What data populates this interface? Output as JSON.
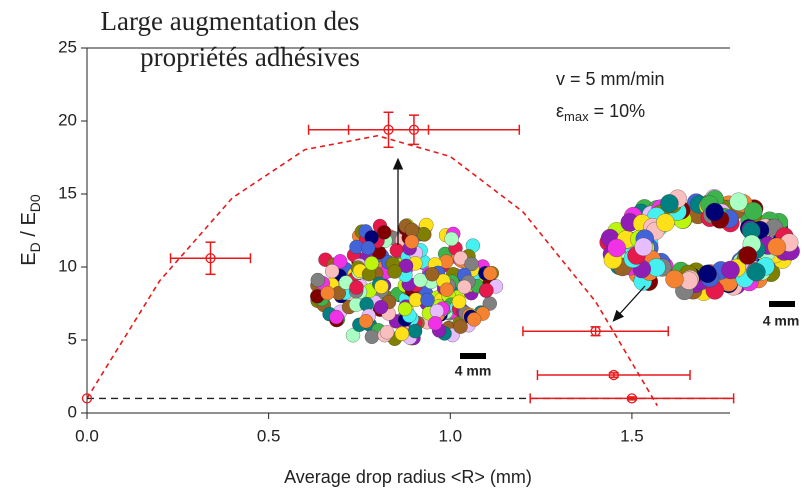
{
  "chart_data": {
    "type": "scatter",
    "title": [
      "Large augmentation des",
      "propriétés adhésives"
    ],
    "xlabel": "Average drop radius <R> (mm)",
    "ylabel": {
      "main": "E",
      "sub1": "D",
      "mid": " / E",
      "sub2": "D0"
    },
    "annotations": {
      "speed": "v = 5 mm/min",
      "strain": {
        "symbol": "ε",
        "sub": "max",
        "rest": " = 10%"
      },
      "scale_bar": "4 mm"
    },
    "xlim": [
      0,
      1.77
    ],
    "ylim": [
      0,
      25
    ],
    "xticks": [
      {
        "value": 0,
        "label": "0.0"
      },
      {
        "value": 0.5,
        "label": "0.5"
      },
      {
        "value": 1,
        "label": "1.0"
      },
      {
        "value": 1.5,
        "label": "1.5"
      }
    ],
    "yticks": [
      0,
      5,
      10,
      15,
      20,
      25
    ],
    "color": "#e8191b",
    "points": {
      "x": [
        0,
        0.34,
        0.83,
        0.9,
        1.4,
        1.45,
        1.5
      ],
      "values": [
        1,
        10.6,
        19.4,
        19.4,
        5.6,
        2.6,
        1
      ],
      "xerr": [
        0,
        0.11,
        0.11,
        0.29,
        0.2,
        0.21,
        0.28
      ],
      "yerr": [
        0,
        1.1,
        1.2,
        1,
        0.3,
        0.15,
        0.1
      ]
    },
    "fit": {
      "color": "#e8191b",
      "x": [
        0,
        0.2,
        0.4,
        0.6,
        0.8,
        1,
        1.2,
        1.4,
        1.57
      ],
      "values": [
        1,
        9.05,
        14.73,
        18.04,
        18.99,
        17.57,
        13.78,
        7.63,
        0.5
      ]
    },
    "baseline": {
      "color": "#222222",
      "x": [
        0,
        1.77
      ],
      "values": [
        1,
        1
      ]
    }
  }
}
